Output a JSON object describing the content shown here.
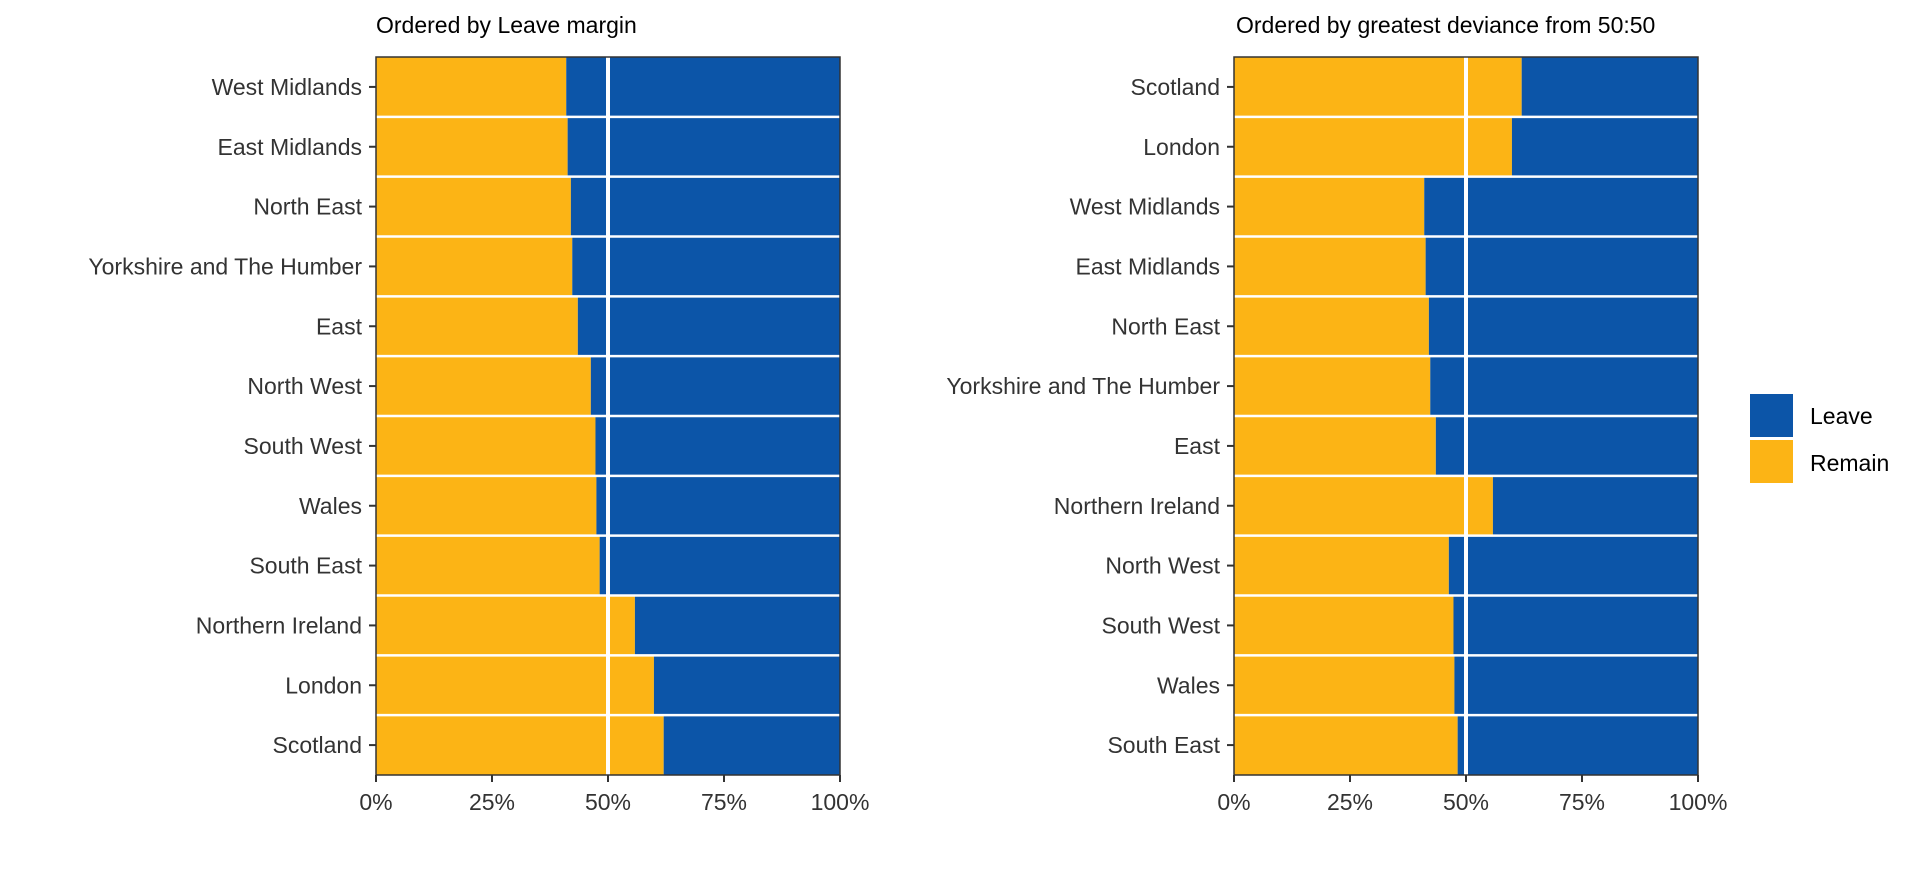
{
  "legend": {
    "items": [
      {
        "label": "Leave",
        "color": "#0C55A8"
      },
      {
        "label": "Remain",
        "color": "#FCB415"
      }
    ]
  },
  "chart_data": [
    {
      "type": "bar",
      "orientation": "horizontal",
      "stacked": true,
      "title": "Ordered by Leave margin",
      "categories": [
        "West Midlands",
        "East Midlands",
        "North East",
        "Yorkshire and The Humber",
        "East",
        "North West",
        "South West",
        "Wales",
        "South East",
        "Northern Ireland",
        "London",
        "Scotland"
      ],
      "series": [
        {
          "name": "Remain",
          "values": [
            41.0,
            41.3,
            42.0,
            42.3,
            43.5,
            46.3,
            47.3,
            47.5,
            48.2,
            55.8,
            59.9,
            62.0
          ]
        },
        {
          "name": "Leave",
          "values": [
            59.0,
            58.7,
            58.0,
            57.7,
            56.5,
            53.7,
            52.7,
            52.5,
            51.8,
            44.2,
            40.1,
            38.0
          ]
        }
      ],
      "x_ticks": [
        "0%",
        "25%",
        "50%",
        "75%",
        "100%"
      ],
      "xlim": [
        0,
        100
      ],
      "reference_line": 50,
      "grid": false
    },
    {
      "type": "bar",
      "orientation": "horizontal",
      "stacked": true,
      "title": "Ordered by greatest deviance from 50:50",
      "categories": [
        "Scotland",
        "London",
        "West Midlands",
        "East Midlands",
        "North East",
        "Yorkshire and The Humber",
        "East",
        "Northern Ireland",
        "North West",
        "South West",
        "Wales",
        "South East"
      ],
      "series": [
        {
          "name": "Remain",
          "values": [
            62.0,
            59.9,
            41.0,
            41.3,
            42.0,
            42.3,
            43.5,
            55.8,
            46.3,
            47.3,
            47.5,
            48.2
          ]
        },
        {
          "name": "Leave",
          "values": [
            38.0,
            40.1,
            59.0,
            58.7,
            58.0,
            57.7,
            56.5,
            44.2,
            53.7,
            52.7,
            52.5,
            51.8
          ]
        }
      ],
      "x_ticks": [
        "0%",
        "25%",
        "50%",
        "75%",
        "100%"
      ],
      "xlim": [
        0,
        100
      ],
      "reference_line": 50,
      "grid": false
    }
  ]
}
